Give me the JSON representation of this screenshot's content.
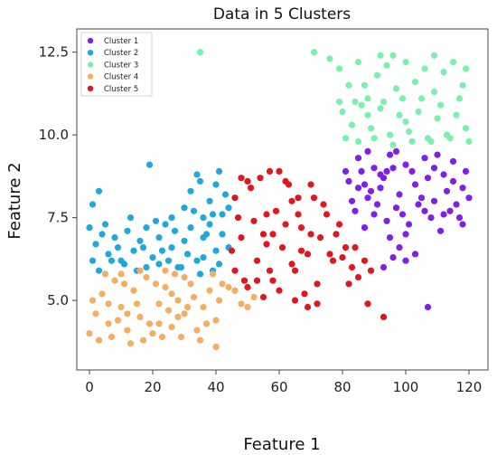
{
  "chart_data": {
    "type": "scatter",
    "title": "Data in 5 Clusters",
    "xlabel": "Feature 1",
    "ylabel": "Feature 2",
    "xlim": [
      -4,
      126
    ],
    "ylim": [
      2.9,
      13.2
    ],
    "xticks": [
      0,
      20,
      40,
      60,
      80,
      100,
      120
    ],
    "yticks": [
      5.0,
      7.5,
      10.0,
      12.5
    ],
    "ytick_labels": [
      "5.0",
      "7.5",
      "10.0",
      "12.5"
    ],
    "grid": false,
    "legend_position": "top-left",
    "series": [
      {
        "name": "Cluster 1",
        "color": "#7f1fea",
        "points": [
          [
            82,
            8.6
          ],
          [
            85,
            9.3
          ],
          [
            88,
            8.1
          ],
          [
            90,
            9.0
          ],
          [
            93,
            8.7
          ],
          [
            95,
            9.4
          ],
          [
            98,
            8.2
          ],
          [
            100,
            9.1
          ],
          [
            103,
            8.5
          ],
          [
            106,
            9.3
          ],
          [
            109,
            8.0
          ],
          [
            112,
            8.8
          ],
          [
            115,
            9.2
          ],
          [
            118,
            8.4
          ],
          [
            84,
            7.7
          ],
          [
            87,
            7.2
          ],
          [
            91,
            7.9
          ],
          [
            94,
            7.4
          ],
          [
            97,
            7.8
          ],
          [
            101,
            7.3
          ],
          [
            104,
            7.9
          ],
          [
            108,
            7.5
          ],
          [
            111,
            7.1
          ],
          [
            114,
            7.7
          ],
          [
            117,
            7.5
          ],
          [
            86,
            8.9
          ],
          [
            89,
            8.3
          ],
          [
            92,
            8.4
          ],
          [
            96,
            9.0
          ],
          [
            99,
            7.6
          ],
          [
            102,
            8.9
          ],
          [
            105,
            8.1
          ],
          [
            107,
            8.7
          ],
          [
            110,
            9.4
          ],
          [
            113,
            8.3
          ],
          [
            116,
            7.9
          ],
          [
            119,
            8.9
          ],
          [
            83,
            8.0
          ],
          [
            85,
            8.4
          ],
          [
            95,
            6.9
          ],
          [
            98,
            6.6
          ],
          [
            100,
            7.0
          ],
          [
            103,
            6.4
          ],
          [
            93,
            6.0
          ],
          [
            96,
            6.3
          ],
          [
            90,
            7.6
          ],
          [
            94,
            8.9
          ],
          [
            97,
            9.5
          ],
          [
            106,
            7.7
          ],
          [
            112,
            7.6
          ],
          [
            118,
            7.3
          ],
          [
            81,
            8.9
          ],
          [
            88,
            9.5
          ],
          [
            100,
            6.2
          ],
          [
            107,
            4.8
          ],
          [
            115,
            8.6
          ],
          [
            120,
            8.1
          ],
          [
            109,
            9.0
          ],
          [
            92,
            8.8
          ],
          [
            87,
            8.5
          ]
        ]
      },
      {
        "name": "Cluster 2",
        "color": "#1ea8dc",
        "points": [
          [
            0,
            7.2
          ],
          [
            2,
            6.7
          ],
          [
            4,
            7.0
          ],
          [
            6,
            6.4
          ],
          [
            8,
            6.9
          ],
          [
            10,
            6.2
          ],
          [
            12,
            7.1
          ],
          [
            14,
            6.5
          ],
          [
            16,
            6.8
          ],
          [
            18,
            7.2
          ],
          [
            20,
            6.3
          ],
          [
            22,
            6.9
          ],
          [
            24,
            7.3
          ],
          [
            26,
            6.6
          ],
          [
            28,
            6.0
          ],
          [
            30,
            6.8
          ],
          [
            32,
            7.2
          ],
          [
            34,
            6.2
          ],
          [
            36,
            6.9
          ],
          [
            38,
            7.3
          ],
          [
            40,
            6.5
          ],
          [
            42,
            7.0
          ],
          [
            44,
            6.6
          ],
          [
            30,
            7.8
          ],
          [
            32,
            8.3
          ],
          [
            34,
            8.8
          ],
          [
            36,
            7.5
          ],
          [
            38,
            8.0
          ],
          [
            40,
            8.5
          ],
          [
            42,
            7.6
          ],
          [
            43,
            8.2
          ],
          [
            37,
            7.0
          ],
          [
            35,
            5.8
          ],
          [
            39,
            5.9
          ],
          [
            41,
            6.1
          ],
          [
            29,
            6.0
          ],
          [
            25,
            6.2
          ],
          [
            22,
            6.1
          ],
          [
            18,
            6.0
          ],
          [
            15,
            5.9
          ],
          [
            11,
            6.1
          ],
          [
            7,
            6.2
          ],
          [
            3,
            5.9
          ],
          [
            1,
            6.2
          ],
          [
            19,
            9.1
          ],
          [
            3,
            8.3
          ],
          [
            1,
            7.9
          ],
          [
            13,
            7.5
          ],
          [
            21,
            7.4
          ],
          [
            27,
            7.1
          ],
          [
            33,
            7.7
          ],
          [
            35,
            8.6
          ],
          [
            44,
            7.8
          ],
          [
            31,
            6.4
          ],
          [
            17,
            6.6
          ],
          [
            9,
            6.6
          ],
          [
            23,
            6.5
          ],
          [
            5,
            7.3
          ],
          [
            26,
            7.5
          ],
          [
            41,
            8.9
          ],
          [
            39,
            7.6
          ],
          [
            36,
            6.3
          ]
        ]
      },
      {
        "name": "Cluster 3",
        "color": "#7af0b0",
        "points": [
          [
            79,
            12.0
          ],
          [
            82,
            11.5
          ],
          [
            85,
            12.2
          ],
          [
            88,
            11.1
          ],
          [
            91,
            11.8
          ],
          [
            94,
            12.1
          ],
          [
            97,
            11.4
          ],
          [
            100,
            12.2
          ],
          [
            103,
            11.6
          ],
          [
            106,
            12.0
          ],
          [
            109,
            11.3
          ],
          [
            112,
            11.9
          ],
          [
            115,
            12.2
          ],
          [
            118,
            11.5
          ],
          [
            80,
            10.7
          ],
          [
            83,
            10.3
          ],
          [
            86,
            10.9
          ],
          [
            89,
            10.2
          ],
          [
            92,
            10.8
          ],
          [
            95,
            10.0
          ],
          [
            98,
            10.6
          ],
          [
            101,
            10.1
          ],
          [
            104,
            10.7
          ],
          [
            107,
            9.9
          ],
          [
            110,
            10.5
          ],
          [
            113,
            10.0
          ],
          [
            116,
            10.6
          ],
          [
            119,
            10.2
          ],
          [
            81,
            9.9
          ],
          [
            85,
            9.8
          ],
          [
            90,
            9.9
          ],
          [
            96,
            9.7
          ],
          [
            102,
            9.8
          ],
          [
            108,
            9.8
          ],
          [
            114,
            9.9
          ],
          [
            120,
            9.8
          ],
          [
            87,
            11.5
          ],
          [
            93,
            11.0
          ],
          [
            99,
            11.1
          ],
          [
            105,
            11.1
          ],
          [
            111,
            10.9
          ],
          [
            117,
            11.1
          ],
          [
            84,
            11.0
          ],
          [
            96,
            12.4
          ],
          [
            109,
            12.4
          ],
          [
            79,
            11.0
          ],
          [
            35,
            12.5
          ],
          [
            71,
            12.5
          ],
          [
            76,
            12.3
          ],
          [
            92,
            12.4
          ],
          [
            119,
            12.0
          ],
          [
            100,
            10.4
          ],
          [
            88,
            10.6
          ]
        ]
      },
      {
        "name": "Cluster 4",
        "color": "#f5ad62",
        "points": [
          [
            0,
            4.0
          ],
          [
            2,
            4.6
          ],
          [
            4,
            5.2
          ],
          [
            6,
            4.3
          ],
          [
            8,
            5.6
          ],
          [
            10,
            4.8
          ],
          [
            12,
            4.1
          ],
          [
            14,
            5.3
          ],
          [
            16,
            4.5
          ],
          [
            18,
            5.7
          ],
          [
            20,
            4.0
          ],
          [
            22,
            4.9
          ],
          [
            24,
            5.4
          ],
          [
            26,
            4.2
          ],
          [
            28,
            5.0
          ],
          [
            30,
            4.6
          ],
          [
            32,
            5.5
          ],
          [
            34,
            4.1
          ],
          [
            36,
            4.8
          ],
          [
            38,
            5.3
          ],
          [
            40,
            4.4
          ],
          [
            1,
            5.0
          ],
          [
            3,
            3.8
          ],
          [
            5,
            5.8
          ],
          [
            7,
            3.9
          ],
          [
            9,
            4.4
          ],
          [
            11,
            5.5
          ],
          [
            13,
            3.7
          ],
          [
            15,
            4.9
          ],
          [
            17,
            3.8
          ],
          [
            19,
            4.3
          ],
          [
            21,
            5.5
          ],
          [
            23,
            3.9
          ],
          [
            25,
            4.7
          ],
          [
            27,
            5.8
          ],
          [
            29,
            3.9
          ],
          [
            31,
            4.8
          ],
          [
            33,
            5.1
          ],
          [
            35,
            3.8
          ],
          [
            37,
            4.3
          ],
          [
            39,
            5.8
          ],
          [
            41,
            5.0
          ],
          [
            42,
            5.5
          ],
          [
            44,
            5.4
          ],
          [
            46,
            5.3
          ],
          [
            48,
            4.9
          ],
          [
            50,
            4.8
          ],
          [
            52,
            5.1
          ],
          [
            16,
            5.9
          ],
          [
            24,
            5.9
          ],
          [
            10,
            5.8
          ],
          [
            22,
            4.3
          ],
          [
            28,
            4.5
          ],
          [
            30,
            5.7
          ],
          [
            6,
            4.9
          ],
          [
            40,
            3.6
          ],
          [
            26,
            5.2
          ],
          [
            12,
            4.6
          ]
        ]
      },
      {
        "name": "Cluster 5",
        "color": "#e3161f",
        "points": [
          [
            45,
            6.5
          ],
          [
            47,
            7.5
          ],
          [
            49,
            5.6
          ],
          [
            51,
            8.4
          ],
          [
            53,
            6.2
          ],
          [
            55,
            7.0
          ],
          [
            57,
            5.9
          ],
          [
            59,
            7.7
          ],
          [
            61,
            6.6
          ],
          [
            63,
            8.5
          ],
          [
            65,
            5.9
          ],
          [
            67,
            7.2
          ],
          [
            69,
            6.4
          ],
          [
            71,
            8.1
          ],
          [
            73,
            6.9
          ],
          [
            75,
            7.6
          ],
          [
            77,
            6.2
          ],
          [
            79,
            7.3
          ],
          [
            81,
            6.6
          ],
          [
            83,
            6.0
          ],
          [
            85,
            5.7
          ],
          [
            87,
            6.2
          ],
          [
            89,
            5.9
          ],
          [
            46,
            8.1
          ],
          [
            48,
            6.9
          ],
          [
            50,
            5.4
          ],
          [
            52,
            7.4
          ],
          [
            54,
            8.7
          ],
          [
            56,
            6.7
          ],
          [
            58,
            5.6
          ],
          [
            60,
            8.9
          ],
          [
            62,
            7.3
          ],
          [
            64,
            6.1
          ],
          [
            66,
            8.1
          ],
          [
            68,
            5.2
          ],
          [
            70,
            7.0
          ],
          [
            72,
            5.5
          ],
          [
            74,
            7.9
          ],
          [
            76,
            6.4
          ],
          [
            78,
            7.0
          ],
          [
            80,
            6.3
          ],
          [
            82,
            5.5
          ],
          [
            84,
            6.6
          ],
          [
            55,
            5.1
          ],
          [
            60,
            5.3
          ],
          [
            65,
            5.0
          ],
          [
            69,
            4.8
          ],
          [
            72,
            4.9
          ],
          [
            57,
            8.9
          ],
          [
            62,
            8.6
          ],
          [
            66,
            7.6
          ],
          [
            70,
            8.5
          ],
          [
            64,
            8.0
          ],
          [
            56,
            7.6
          ],
          [
            50,
            8.6
          ],
          [
            48,
            8.7
          ],
          [
            58,
            7.0
          ],
          [
            67,
            6.5
          ],
          [
            88,
            4.9
          ],
          [
            93,
            4.5
          ],
          [
            46,
            5.9
          ],
          [
            53,
            5.6
          ]
        ]
      }
    ]
  }
}
